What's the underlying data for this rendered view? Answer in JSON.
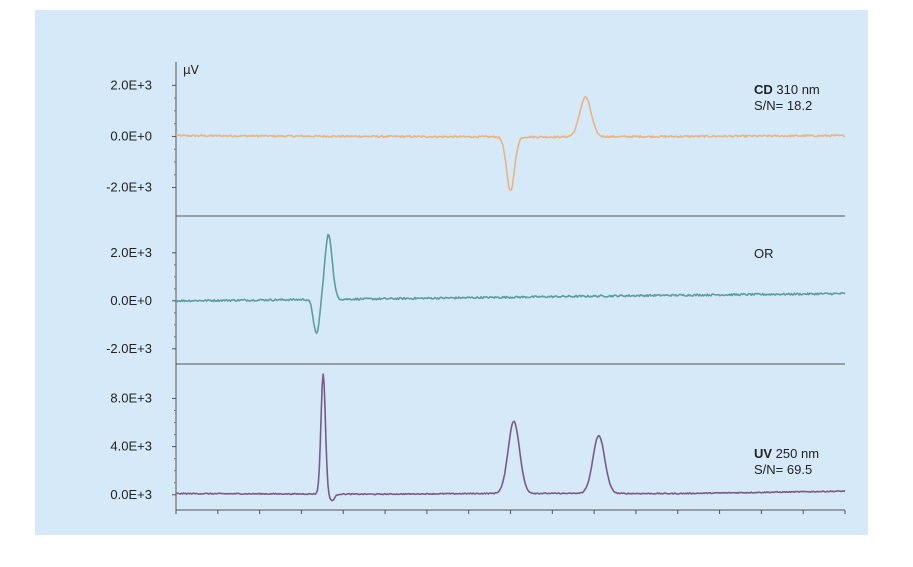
{
  "chart_data": {
    "type": "line",
    "y_unit": "µV",
    "x_ticks": 16,
    "panels": [
      {
        "name": "CD",
        "label_bold": "CD",
        "label_rest": " 310 nm",
        "sn_text": "S/N= 18.2",
        "color": "#e8b482",
        "ylim": [
          -2800,
          2600
        ],
        "y_ticks": [
          {
            "value": 2000,
            "label": "2.0E+3"
          },
          {
            "value": 0,
            "label": "0.0E+0"
          },
          {
            "value": -2000,
            "label": "-2.0E+3"
          }
        ],
        "baseline": [
          [
            0.0,
            30
          ],
          [
            0.2,
            10
          ],
          [
            0.4,
            -10
          ],
          [
            0.55,
            -20
          ],
          [
            0.75,
            0
          ],
          [
            0.9,
            20
          ],
          [
            1.0,
            30
          ]
        ],
        "peaks": [
          {
            "x": 0.5,
            "amp": -2100,
            "width": 0.006
          },
          {
            "x": 0.612,
            "amp": 1550,
            "width": 0.0085
          }
        ],
        "noise": 35,
        "range": [
          0.0,
          1.0
        ]
      },
      {
        "name": "OR",
        "label_bold": "",
        "label_rest": "OR",
        "sn_text": "",
        "color": "#5a9ea0",
        "ylim": [
          -2300,
          3200
        ],
        "y_ticks": [
          {
            "value": 2000,
            "label": "2.0E+3"
          },
          {
            "value": 0,
            "label": "0.0E+0"
          },
          {
            "value": -2000,
            "label": "-2.0E+3"
          }
        ],
        "baseline": [
          [
            0.0,
            0
          ],
          [
            0.3,
            80
          ],
          [
            0.5,
            150
          ],
          [
            0.7,
            220
          ],
          [
            1.0,
            300
          ]
        ],
        "peaks": [
          {
            "x": 0.228,
            "amp": 2700,
            "width": 0.0055
          },
          {
            "x": 0.21,
            "amp": -1450,
            "width": 0.0045
          }
        ],
        "noise": 40,
        "range": [
          0.0,
          1.0
        ]
      },
      {
        "name": "UV",
        "label_bold": "UV",
        "label_rest": " 250 nm",
        "sn_text": "S/N= 69.5",
        "color": "#7b5b86",
        "ylim": [
          -600,
          10200
        ],
        "y_ticks": [
          {
            "value": 8000,
            "label": "8.0E+3"
          },
          {
            "value": 4000,
            "label": "4.0E+3"
          },
          {
            "value": 0,
            "label": "0.0E+3"
          }
        ],
        "baseline": [
          [
            0.0,
            100
          ],
          [
            0.3,
            50
          ],
          [
            0.5,
            120
          ],
          [
            0.75,
            100
          ],
          [
            1.0,
            300
          ]
        ],
        "peaks": [
          {
            "x": 0.22,
            "amp": 10000,
            "width": 0.0033
          },
          {
            "x": 0.233,
            "amp": -550,
            "width": 0.004
          },
          {
            "x": 0.505,
            "amp": 6000,
            "width": 0.0085
          },
          {
            "x": 0.632,
            "amp": 4800,
            "width": 0.0088
          }
        ],
        "noise": 40,
        "range": [
          0.0,
          1.0
        ]
      }
    ]
  }
}
